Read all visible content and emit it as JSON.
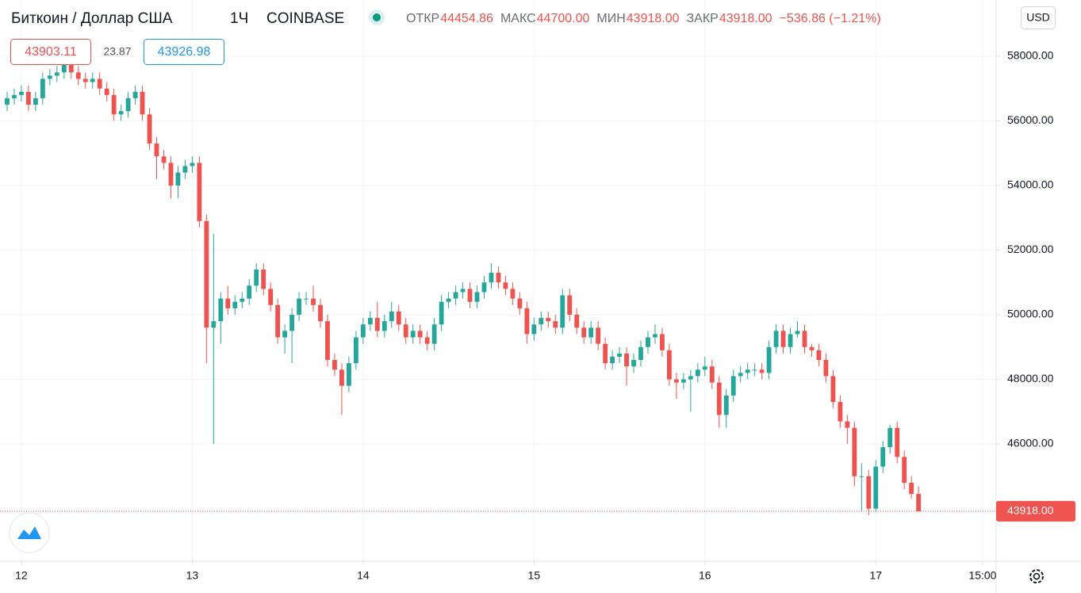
{
  "header": {
    "symbol": "Биткоин / Доллар США",
    "interval": "1Ч",
    "exchange": "COINBASE",
    "ohlc": [
      {
        "label": "ОТКР",
        "value": "44454.86"
      },
      {
        "label": "МАКС",
        "value": "44700.00"
      },
      {
        "label": "МИН",
        "value": "43918.00"
      },
      {
        "label": "ЗАКР",
        "value": "43918.00"
      }
    ],
    "change": "−536.86 (−1.21%)",
    "bid": "43903.11",
    "spread": "23.87",
    "ask": "43926.98",
    "currency": "USD"
  },
  "chart_data": {
    "type": "candlestick",
    "up_color": "#26a69a",
    "down_color": "#ef5350",
    "grid": true,
    "xlim": [
      -3,
      136.9
    ],
    "ylim": [
      42370,
      59740
    ],
    "xticks": [
      {
        "value": 0,
        "label": "12"
      },
      {
        "value": 24,
        "label": "13"
      },
      {
        "value": 48,
        "label": "14"
      },
      {
        "value": 72,
        "label": "15"
      },
      {
        "value": 96,
        "label": "16"
      },
      {
        "value": 120,
        "label": "17"
      },
      {
        "value": 135,
        "label": "15:00"
      }
    ],
    "yticks": [
      {
        "value": 46000,
        "label": "46000.00"
      },
      {
        "value": 48000,
        "label": "48000.00"
      },
      {
        "value": 50000,
        "label": "50000.00"
      },
      {
        "value": 52000,
        "label": "52000.00"
      },
      {
        "value": 54000,
        "label": "54000.00"
      },
      {
        "value": 56000,
        "label": "56000.00"
      },
      {
        "value": 58000,
        "label": "58000.00"
      }
    ],
    "last_price": {
      "value": 43918,
      "label": "43918.00"
    },
    "x": [
      -2,
      -1,
      0,
      1,
      2,
      3,
      4,
      5,
      6,
      7,
      8,
      9,
      10,
      11,
      12,
      13,
      14,
      15,
      16,
      17,
      18,
      19,
      20,
      21,
      22,
      23,
      24,
      25,
      26,
      27,
      28,
      29,
      30,
      31,
      32,
      33,
      34,
      35,
      36,
      37,
      38,
      39,
      40,
      41,
      42,
      43,
      44,
      45,
      46,
      47,
      48,
      49,
      50,
      51,
      52,
      53,
      54,
      55,
      56,
      57,
      58,
      59,
      60,
      61,
      62,
      63,
      64,
      65,
      66,
      67,
      68,
      69,
      70,
      71,
      72,
      73,
      74,
      75,
      76,
      77,
      78,
      79,
      80,
      81,
      82,
      83,
      84,
      85,
      86,
      87,
      88,
      89,
      90,
      91,
      92,
      93,
      94,
      95,
      96,
      97,
      98,
      99,
      100,
      101,
      102,
      103,
      104,
      105,
      106,
      107,
      108,
      109,
      110,
      111,
      112,
      113,
      114,
      115,
      116,
      117,
      118,
      119,
      120,
      121,
      122,
      123,
      124,
      125,
      126
    ],
    "open": [
      56500,
      56700,
      56800,
      56900,
      56500,
      56700,
      57300,
      57400,
      57500,
      57800,
      57500,
      57300,
      57200,
      57300,
      57000,
      56800,
      56200,
      56300,
      56700,
      56900,
      56200,
      55300,
      54900,
      54700,
      54000,
      54400,
      54600,
      54700,
      52900,
      49600,
      49800,
      50500,
      50200,
      50400,
      50500,
      50900,
      51400,
      50800,
      50300,
      49300,
      49500,
      50000,
      50500,
      50500,
      50300,
      49800,
      48600,
      48300,
      47800,
      48500,
      49300,
      49700,
      49900,
      49500,
      49800,
      50100,
      49700,
      49300,
      49500,
      49300,
      49100,
      49700,
      50400,
      50500,
      50700,
      50800,
      50400,
      50700,
      51000,
      51300,
      51000,
      50800,
      50500,
      50200,
      49400,
      49700,
      49900,
      49800,
      49600,
      50600,
      50000,
      49600,
      49300,
      49600,
      49100,
      48500,
      48700,
      48800,
      48400,
      48600,
      49000,
      49300,
      49400,
      48900,
      48000,
      47900,
      48000,
      48100,
      48300,
      48400,
      47900,
      46900,
      47500,
      48100,
      48200,
      48300,
      48300,
      48200,
      49000,
      49500,
      49000,
      49400,
      49500,
      49000,
      48900,
      48600,
      48100,
      47300,
      46700,
      46500,
      45000,
      45000,
      44000,
      45300,
      45900,
      46500,
      45600,
      44800,
      44454.86
    ],
    "high": [
      56900,
      57000,
      57100,
      57100,
      56900,
      57500,
      57600,
      57700,
      58000,
      58000,
      57700,
      57500,
      57500,
      57500,
      57200,
      57000,
      56500,
      56900,
      57100,
      57100,
      56400,
      55500,
      55100,
      54900,
      54600,
      54800,
      54900,
      54900,
      53100,
      52500,
      50700,
      50900,
      50600,
      50700,
      51100,
      51600,
      51600,
      51000,
      50500,
      49700,
      50200,
      50700,
      50700,
      50900,
      50500,
      50000,
      48800,
      48500,
      48700,
      49500,
      49900,
      50100,
      50400,
      50000,
      50400,
      50300,
      49900,
      49700,
      49700,
      49500,
      49900,
      50600,
      50700,
      50900,
      51000,
      51000,
      50900,
      51200,
      51600,
      51500,
      51200,
      51000,
      50700,
      50400,
      49900,
      50100,
      50100,
      50000,
      50800,
      50800,
      50200,
      49800,
      49800,
      49800,
      49300,
      48900,
      49000,
      49000,
      48800,
      49200,
      49500,
      49700,
      49600,
      49100,
      48200,
      48200,
      48300,
      48500,
      48700,
      48600,
      48100,
      47700,
      48300,
      48400,
      48500,
      48500,
      48500,
      49200,
      49700,
      49700,
      49600,
      49800,
      49700,
      49100,
      49100,
      48800,
      48300,
      47500,
      46900,
      46700,
      45400,
      45200,
      45500,
      46100,
      46600,
      46700,
      45800,
      45000,
      44700
    ],
    "low": [
      56300,
      56500,
      56600,
      56300,
      56300,
      56500,
      57100,
      57200,
      57300,
      57300,
      57100,
      57000,
      57000,
      56800,
      56600,
      56000,
      56000,
      56100,
      56500,
      56000,
      55100,
      54200,
      54500,
      53600,
      53600,
      54200,
      54400,
      52700,
      48500,
      46000,
      49100,
      50000,
      50000,
      50200,
      50300,
      50700,
      50600,
      50100,
      49100,
      48800,
      48500,
      49800,
      50300,
      50100,
      49600,
      48400,
      48100,
      46900,
      47600,
      48300,
      49100,
      49500,
      49300,
      49300,
      49600,
      49500,
      49100,
      49100,
      49100,
      48900,
      48900,
      49500,
      50200,
      50300,
      50500,
      50200,
      50200,
      50500,
      50800,
      50800,
      50600,
      50300,
      50000,
      49100,
      49200,
      49500,
      49600,
      49400,
      49400,
      49800,
      49400,
      49100,
      49100,
      48900,
      48300,
      48300,
      48500,
      47800,
      48200,
      48400,
      48800,
      49100,
      48700,
      47800,
      47400,
      47700,
      47000,
      47900,
      48100,
      47700,
      46500,
      46500,
      47300,
      47900,
      48000,
      48100,
      48000,
      48000,
      48800,
      48800,
      48800,
      49300,
      48800,
      48700,
      48400,
      47900,
      47100,
      46500,
      46000,
      44700,
      43900,
      43800,
      43900,
      45100,
      45700,
      45400,
      44600,
      44300,
      43918
    ],
    "close": [
      56700,
      56800,
      56900,
      56500,
      56700,
      57300,
      57400,
      57500,
      57800,
      57500,
      57300,
      57200,
      57300,
      57000,
      56800,
      56200,
      56300,
      56700,
      56900,
      56200,
      55300,
      54900,
      54700,
      54000,
      54400,
      54600,
      54700,
      52900,
      49600,
      49800,
      50500,
      50200,
      50400,
      50500,
      50900,
      51400,
      50800,
      50300,
      49300,
      49500,
      50000,
      50500,
      50500,
      50300,
      49800,
      48600,
      48300,
      47800,
      48500,
      49300,
      49700,
      49900,
      49500,
      49800,
      50100,
      49700,
      49300,
      49500,
      49300,
      49100,
      49700,
      50400,
      50500,
      50700,
      50800,
      50400,
      50700,
      51000,
      51300,
      51000,
      50800,
      50500,
      50200,
      49400,
      49700,
      49900,
      49800,
      49600,
      50600,
      50000,
      49600,
      49300,
      49600,
      49100,
      48500,
      48700,
      48800,
      48400,
      48600,
      49000,
      49300,
      49400,
      48900,
      48000,
      47900,
      48000,
      48100,
      48300,
      48400,
      47900,
      46900,
      47500,
      48100,
      48200,
      48300,
      48300,
      48200,
      49000,
      49500,
      49000,
      49400,
      49500,
      49000,
      48900,
      48600,
      48100,
      47300,
      46700,
      46500,
      45000,
      45000,
      44000,
      45300,
      45900,
      46500,
      45600,
      44800,
      44454.86,
      43918
    ]
  }
}
